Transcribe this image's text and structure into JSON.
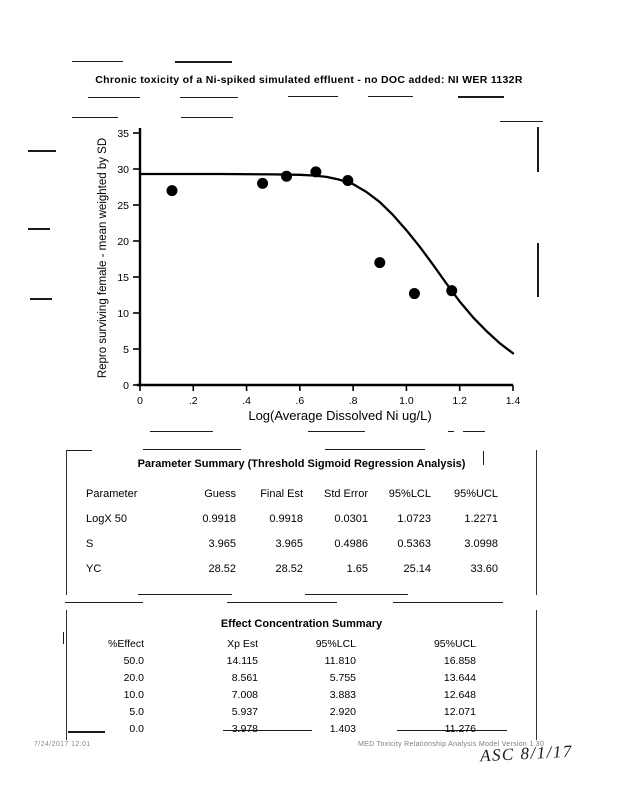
{
  "page": {
    "title": "Chronic toxicity of a Ni-spiked simulated effluent - no DOC added: NI WER 1132R",
    "footer_left": "7/24/2017   12:01",
    "footer_right": "MED Toxicity Relationship Analysis Model  Version 1.30",
    "handwritten_note": "ASC 8/1/17"
  },
  "chart_data": {
    "type": "scatter",
    "title": "",
    "xlabel": "Log(Average Dissolved Ni ug/L)",
    "ylabel": "Repro surviving female - mean weighted by SD",
    "xlim": [
      0,
      1.4
    ],
    "ylim": [
      0,
      35
    ],
    "grid": false,
    "x_ticks": [
      0,
      0.2,
      0.4,
      0.6,
      0.8,
      1.0,
      1.2,
      1.4
    ],
    "x_tick_labels": [
      "0",
      ".2",
      ".4",
      ".6",
      ".8",
      "1.0",
      "1.2",
      "1.4"
    ],
    "y_ticks": [
      0,
      5,
      10,
      15,
      20,
      25,
      30,
      35
    ],
    "y_tick_labels": [
      "0",
      "5",
      "10",
      "15",
      "20",
      "25",
      "30",
      "35"
    ],
    "points": [
      [
        0.12,
        27.0
      ],
      [
        0.46,
        28.0
      ],
      [
        0.55,
        29.0
      ],
      [
        0.66,
        29.6
      ],
      [
        0.78,
        28.4
      ],
      [
        0.9,
        17.0
      ],
      [
        1.03,
        12.7
      ],
      [
        1.17,
        13.1
      ]
    ],
    "fit_curve": {
      "name": "threshold-sigmoid-regression-fit",
      "x": [
        0,
        0.3,
        0.5,
        0.6,
        0.65,
        0.7,
        0.75,
        0.8,
        0.85,
        0.9,
        0.95,
        1.0,
        1.05,
        1.1,
        1.15,
        1.2,
        1.25,
        1.3,
        1.35,
        1.4
      ],
      "y": [
        29.3,
        29.3,
        29.25,
        29.2,
        29.1,
        28.9,
        28.5,
        27.9,
        26.8,
        25.4,
        23.6,
        21.5,
        19.2,
        16.7,
        14.1,
        11.6,
        9.4,
        7.5,
        5.8,
        4.4
      ]
    }
  },
  "parameter_table": {
    "title": "Parameter Summary (Threshold Sigmoid Regression Analysis)",
    "headers": [
      "Parameter",
      "Guess",
      "Final Est",
      "Std Error",
      "95%LCL",
      "95%UCL"
    ],
    "rows": [
      [
        "LogX 50",
        "0.9918",
        "0.9918",
        "0.0301",
        "1.0723",
        "1.2271"
      ],
      [
        "S",
        "3.965",
        "3.965",
        "0.4986",
        "0.5363",
        "3.0998"
      ],
      [
        "YC",
        "28.52",
        "28.52",
        "1.65",
        "25.14",
        "33.60"
      ]
    ]
  },
  "effect_table": {
    "title": "Effect Concentration Summary",
    "headers": [
      "%Effect",
      "Xp Est",
      "95%LCL",
      "95%UCL"
    ],
    "rows": [
      [
        "50.0",
        "14.115",
        "11.810",
        "16.858"
      ],
      [
        "20.0",
        "8.561",
        "5.755",
        "13.644"
      ],
      [
        "10.0",
        "7.008",
        "3.883",
        "12.648"
      ],
      [
        "5.0",
        "5.937",
        "2.920",
        "12.071"
      ],
      [
        "0.0",
        "3.978",
        "1.403",
        "11.276"
      ]
    ]
  }
}
